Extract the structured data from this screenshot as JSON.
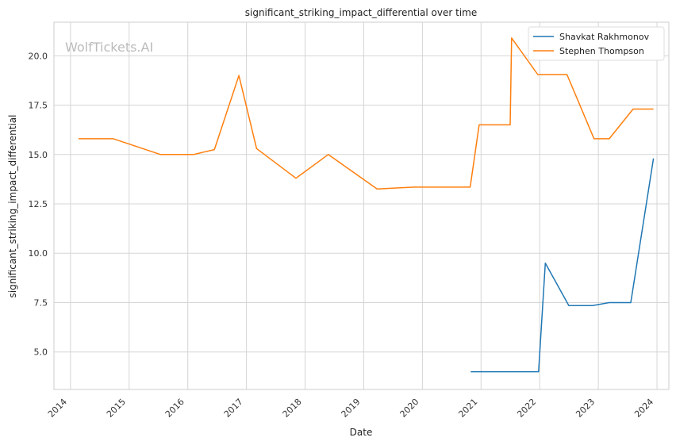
{
  "chart_data": {
    "type": "line",
    "title": "significant_striking_impact_differential over time",
    "xlabel": "Date",
    "ylabel": "significant_striking_impact_differential",
    "watermark": "WolfTickets.AI",
    "xlim": [
      "2013-09-20",
      "2024-03-15"
    ],
    "ylim": [
      3.1,
      21.7
    ],
    "x_ticks": [
      "2014",
      "2015",
      "2016",
      "2017",
      "2018",
      "2019",
      "2020",
      "2021",
      "2022",
      "2023",
      "2024"
    ],
    "y_ticks": [
      5.0,
      7.5,
      10.0,
      12.5,
      15.0,
      17.5,
      20.0
    ],
    "grid": true,
    "legend_position": "top-right",
    "series": [
      {
        "name": "Shavkat Rakhmonov",
        "color": "#1f77b4",
        "points": [
          {
            "x": "2020-10-28",
            "y": 4.0
          },
          {
            "x": "2021-12-01",
            "y": 4.0
          },
          {
            "x": "2021-12-25",
            "y": 4.0
          },
          {
            "x": "2022-02-05",
            "y": 9.5
          },
          {
            "x": "2022-07-01",
            "y": 7.35
          },
          {
            "x": "2022-11-25",
            "y": 7.35
          },
          {
            "x": "2023-03-10",
            "y": 7.5
          },
          {
            "x": "2023-07-22",
            "y": 7.5
          },
          {
            "x": "2023-12-10",
            "y": 14.8
          }
        ]
      },
      {
        "name": "Stephen Thompson",
        "color": "#ff7f0e",
        "points": [
          {
            "x": "2014-02-20",
            "y": 15.8
          },
          {
            "x": "2014-09-25",
            "y": 15.8
          },
          {
            "x": "2015-07-15",
            "y": 15.0
          },
          {
            "x": "2016-02-05",
            "y": 15.0
          },
          {
            "x": "2016-06-15",
            "y": 15.25
          },
          {
            "x": "2016-11-15",
            "y": 19.0
          },
          {
            "x": "2017-03-05",
            "y": 15.3
          },
          {
            "x": "2017-11-05",
            "y": 13.8
          },
          {
            "x": "2018-05-25",
            "y": 15.0
          },
          {
            "x": "2019-03-25",
            "y": 13.25
          },
          {
            "x": "2019-11-10",
            "y": 13.35
          },
          {
            "x": "2020-10-25",
            "y": 13.35
          },
          {
            "x": "2020-12-20",
            "y": 16.5
          },
          {
            "x": "2021-07-01",
            "y": 16.5
          },
          {
            "x": "2021-07-10",
            "y": 20.9
          },
          {
            "x": "2021-12-20",
            "y": 19.05
          },
          {
            "x": "2022-06-20",
            "y": 19.05
          },
          {
            "x": "2022-12-05",
            "y": 15.8
          },
          {
            "x": "2023-03-10",
            "y": 15.8
          },
          {
            "x": "2023-08-05",
            "y": 17.3
          },
          {
            "x": "2023-12-10",
            "y": 17.3
          }
        ]
      }
    ]
  }
}
